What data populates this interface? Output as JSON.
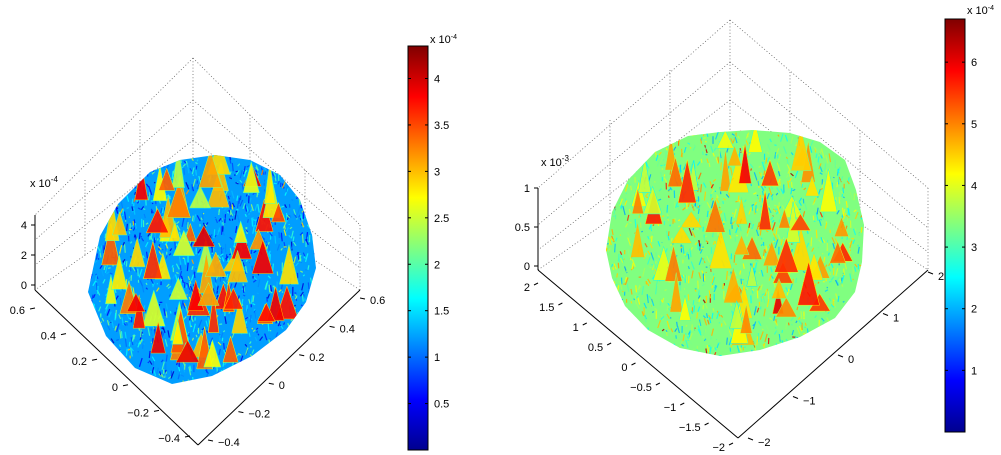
{
  "colors": {
    "jet": [
      "#00008f",
      "#0000ff",
      "#0080ff",
      "#00ffff",
      "#80ff80",
      "#ffff00",
      "#ff8000",
      "#ff0000",
      "#800000"
    ]
  },
  "chart_data": [
    {
      "type": "surface",
      "z_exponent_label": "x 10",
      "z_exponent_sup": "-4",
      "x_ticks": [
        "0.6",
        "0.4",
        "0.2",
        "0",
        "−0.2",
        "−0.4"
      ],
      "y_ticks": [
        "0.6",
        "0.4",
        "0.2",
        "0",
        "−0.2",
        "−0.4"
      ],
      "z_ticks": [
        "4",
        "2",
        "0"
      ],
      "xlim": [
        -0.5,
        0.6
      ],
      "ylim": [
        -0.5,
        0.6
      ],
      "zlim": [
        0,
        0.00043
      ],
      "domain": "disk",
      "grid": true,
      "colorbar": {
        "exponent_label": "x 10",
        "exponent_sup": "-4",
        "ticks": [
          "4",
          "3.5",
          "3",
          "2.5",
          "2",
          "1.5",
          "1",
          "0.5"
        ],
        "tick_values": [
          4,
          3.5,
          3,
          2.5,
          2,
          1.5,
          1,
          0.5
        ],
        "range": [
          0,
          4.35
        ],
        "colormap": "jet"
      }
    },
    {
      "type": "surface",
      "z_exponent_label": "x 10",
      "z_exponent_sup": "-3",
      "x_ticks": [
        "2",
        "1.5",
        "1",
        "0.5",
        "0",
        "−0.5",
        "−1",
        "−1.5",
        "−2"
      ],
      "y_ticks": [
        "2",
        "1",
        "0",
        "−1",
        "−2"
      ],
      "z_ticks": [
        "1",
        "0.5",
        "0"
      ],
      "xlim": [
        -2,
        2
      ],
      "ylim": [
        -2,
        2
      ],
      "zlim": [
        0,
        0.001
      ],
      "domain": "disk",
      "grid": true,
      "colorbar": {
        "exponent_label": "x 10",
        "exponent_sup": "-4",
        "ticks": [
          "6",
          "5",
          "4",
          "3",
          "2",
          "1"
        ],
        "tick_values": [
          6,
          5,
          4,
          3,
          2,
          1
        ],
        "range": [
          0,
          6.7
        ],
        "colormap": "jet"
      }
    }
  ]
}
